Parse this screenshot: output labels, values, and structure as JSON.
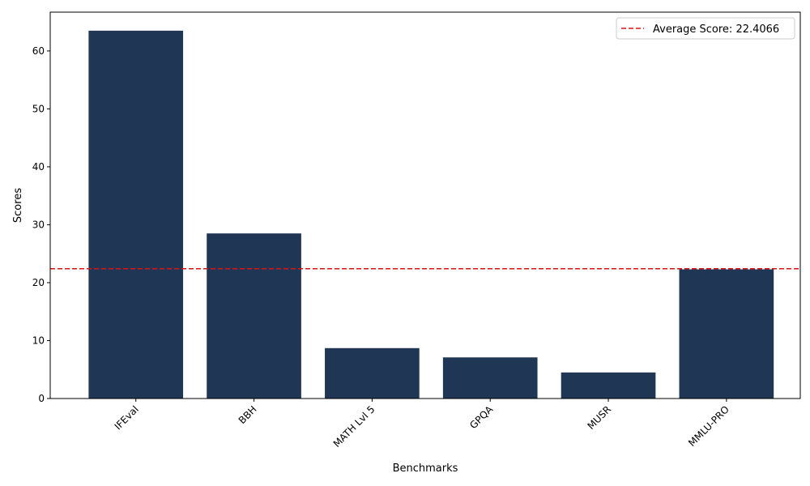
{
  "chart_data": {
    "type": "bar",
    "categories": [
      "IFEval",
      "BBH",
      "MATH Lvl 5",
      "GPQA",
      "MUSR",
      "MMLU-PRO"
    ],
    "values": [
      63.5,
      28.5,
      8.7,
      7.1,
      4.5,
      22.3
    ],
    "xlabel": "Benchmarks",
    "ylabel": "Scores",
    "ylim": [
      0,
      66.7
    ],
    "yticks": [
      0,
      10,
      20,
      30,
      40,
      50,
      60
    ],
    "xtick_rotation_deg": 45,
    "bar_color": "#1f3655",
    "grid": false,
    "reference_line": {
      "label": "Average Score: 22.4066",
      "value": 22.4066,
      "color": "#dd1111",
      "style": "dashed"
    },
    "legend_placement": "top-right"
  }
}
